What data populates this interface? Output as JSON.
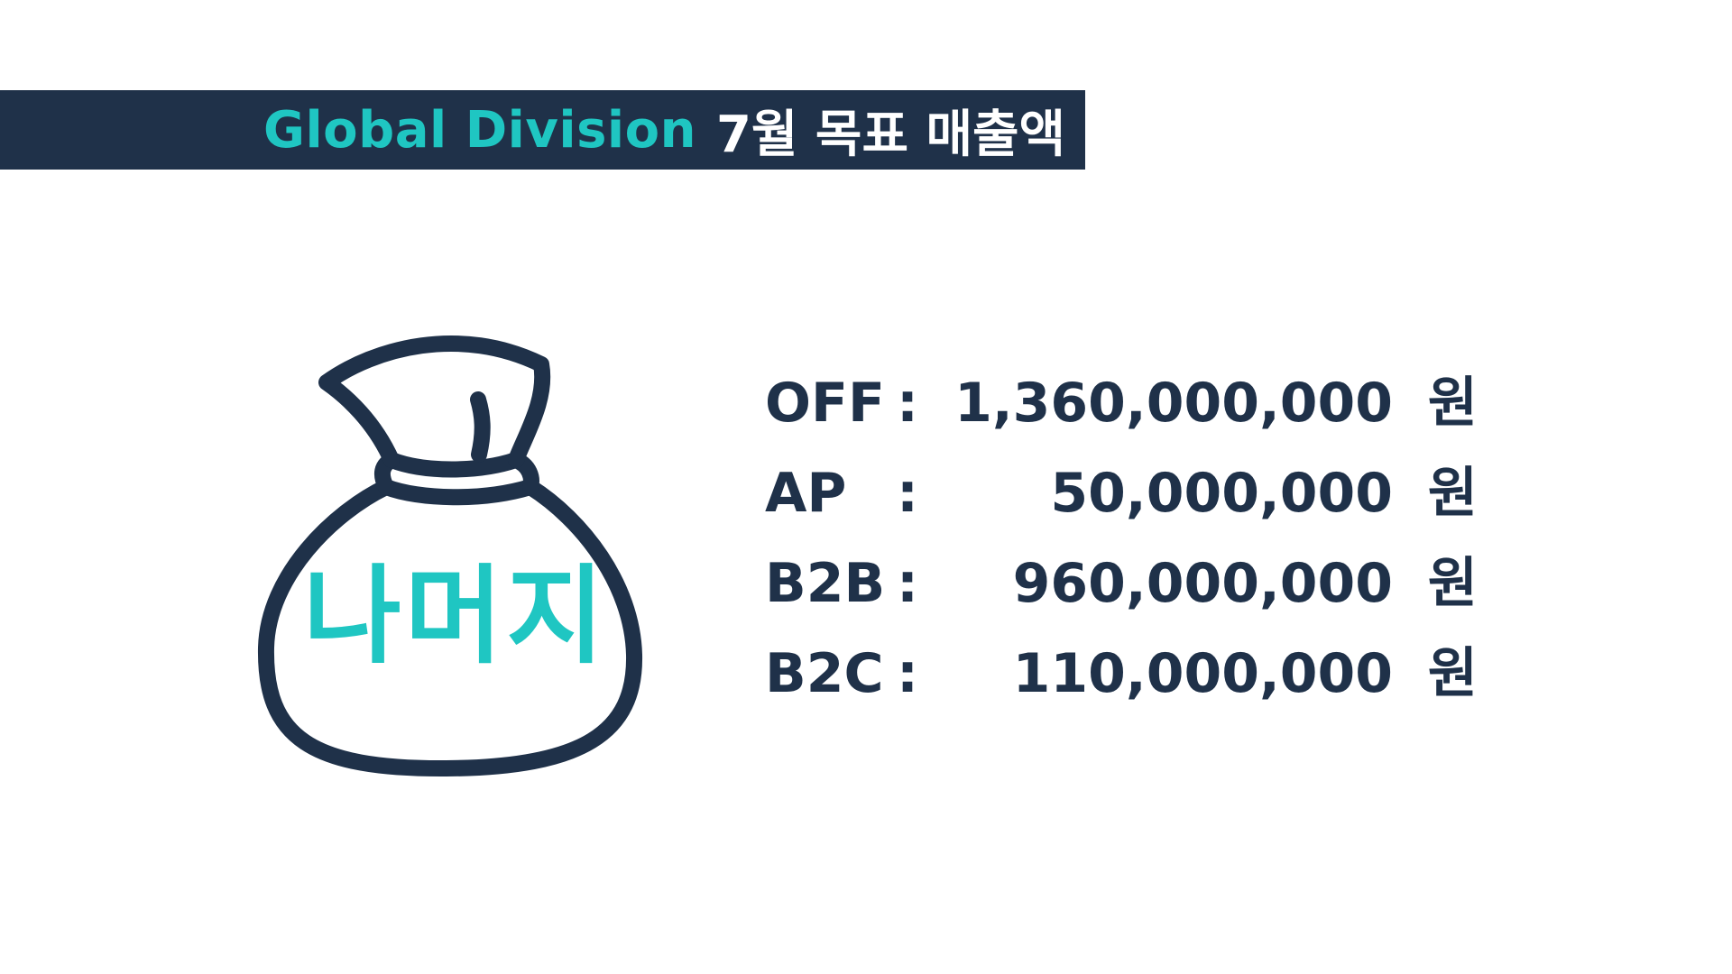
{
  "title": {
    "english": "Global Division",
    "korean": "7월 목표 매출액"
  },
  "bag": {
    "label": "나머지",
    "icon": "money-bag-icon"
  },
  "targets": [
    {
      "name": "OFF",
      "colon": ":",
      "amount": "1,360,000,000",
      "unit": "원"
    },
    {
      "name": "AP",
      "colon": ":",
      "amount": "50,000,000",
      "unit": "원"
    },
    {
      "name": "B2B",
      "colon": ":",
      "amount": "960,000,000",
      "unit": "원"
    },
    {
      "name": "B2C",
      "colon": ":",
      "amount": "110,000,000",
      "unit": "원"
    }
  ],
  "colors": {
    "navy": "#1f3149",
    "teal": "#1fc6c2",
    "background": "#ffffff"
  }
}
